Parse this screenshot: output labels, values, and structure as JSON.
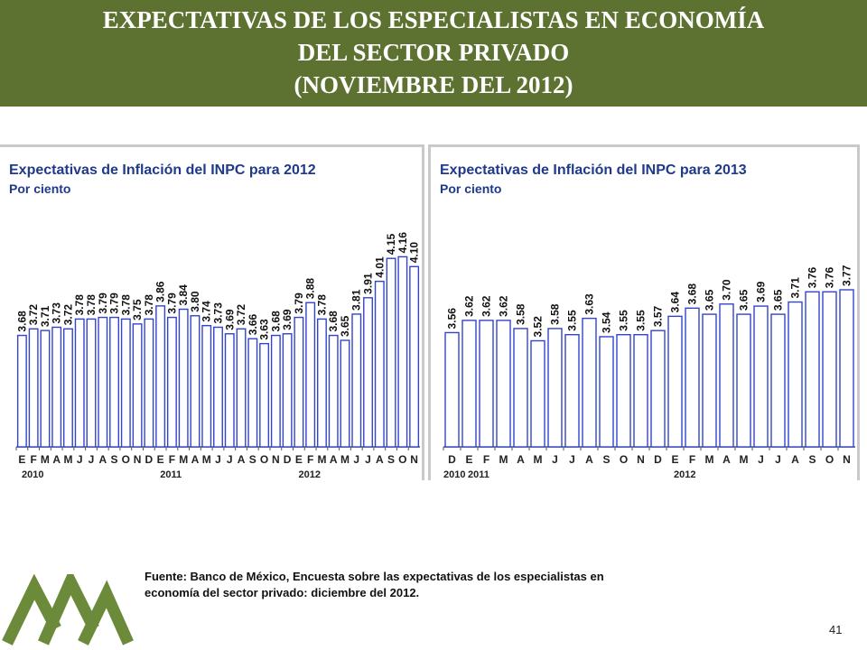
{
  "header": {
    "title_line1": "EXPECTATIVAS DE LOS ESPECIALISTAS EN ECONOMÍA",
    "title_line2": "DEL SECTOR PRIVADO",
    "title_line3": "(NOVIEMBRE DEL 2012)"
  },
  "footer": {
    "source_line1": "Fuente: Banco de México, Encuesta sobre las expectativas de los especialistas en",
    "source_line2": "economía del sector privado: diciembre del 2012.",
    "page_number": "41"
  },
  "colors": {
    "header_bg": "#5d7131",
    "header_text": "#ffffff",
    "chart_title": "#1f3a8a",
    "bar_stroke": "#3344cc",
    "bar_fill_light": "#ffffff",
    "logo": "#6b8a3a"
  },
  "chart_data": [
    {
      "type": "bar",
      "title": "Expectativas de Inflación del INPC para 2012",
      "subtitle": "Por ciento",
      "categories": [
        "E",
        "F",
        "M",
        "A",
        "M",
        "J",
        "J",
        "A",
        "S",
        "O",
        "N",
        "D",
        "E",
        "F",
        "M",
        "A",
        "M",
        "J",
        "J",
        "A",
        "S",
        "O",
        "N",
        "D",
        "E",
        "F",
        "M",
        "A",
        "M",
        "J",
        "J",
        "A",
        "S",
        "O",
        "N"
      ],
      "year_labels": [
        "2010",
        "2011",
        "2012"
      ],
      "values": [
        3.68,
        3.72,
        3.71,
        3.73,
        3.72,
        3.78,
        3.78,
        3.79,
        3.79,
        3.78,
        3.75,
        3.78,
        3.86,
        3.79,
        3.84,
        3.8,
        3.74,
        3.73,
        3.69,
        3.72,
        3.66,
        3.63,
        3.68,
        3.69,
        3.79,
        3.88,
        3.78,
        3.68,
        3.65,
        3.81,
        3.91,
        4.01,
        4.15,
        4.16,
        4.1
      ],
      "ylim": [
        3.0,
        4.3
      ],
      "grid": false,
      "legend": "none"
    },
    {
      "type": "bar",
      "title": "Expectativas de Inflación del INPC para 2013",
      "subtitle": "Por ciento",
      "categories": [
        "D",
        "E",
        "F",
        "M",
        "A",
        "M",
        "J",
        "J",
        "A",
        "S",
        "O",
        "N",
        "D",
        "E",
        "F",
        "M",
        "A",
        "M",
        "J",
        "J",
        "A",
        "S",
        "O",
        "N"
      ],
      "year_labels": [
        "2010",
        "2011",
        "2012"
      ],
      "values": [
        3.56,
        3.62,
        3.62,
        3.62,
        3.58,
        3.52,
        3.58,
        3.55,
        3.63,
        3.54,
        3.55,
        3.55,
        3.57,
        3.64,
        3.68,
        3.65,
        3.7,
        3.65,
        3.69,
        3.65,
        3.71,
        3.76,
        3.76,
        3.77
      ],
      "ylim": [
        3.0,
        4.0
      ],
      "grid": false,
      "legend": "none"
    }
  ]
}
